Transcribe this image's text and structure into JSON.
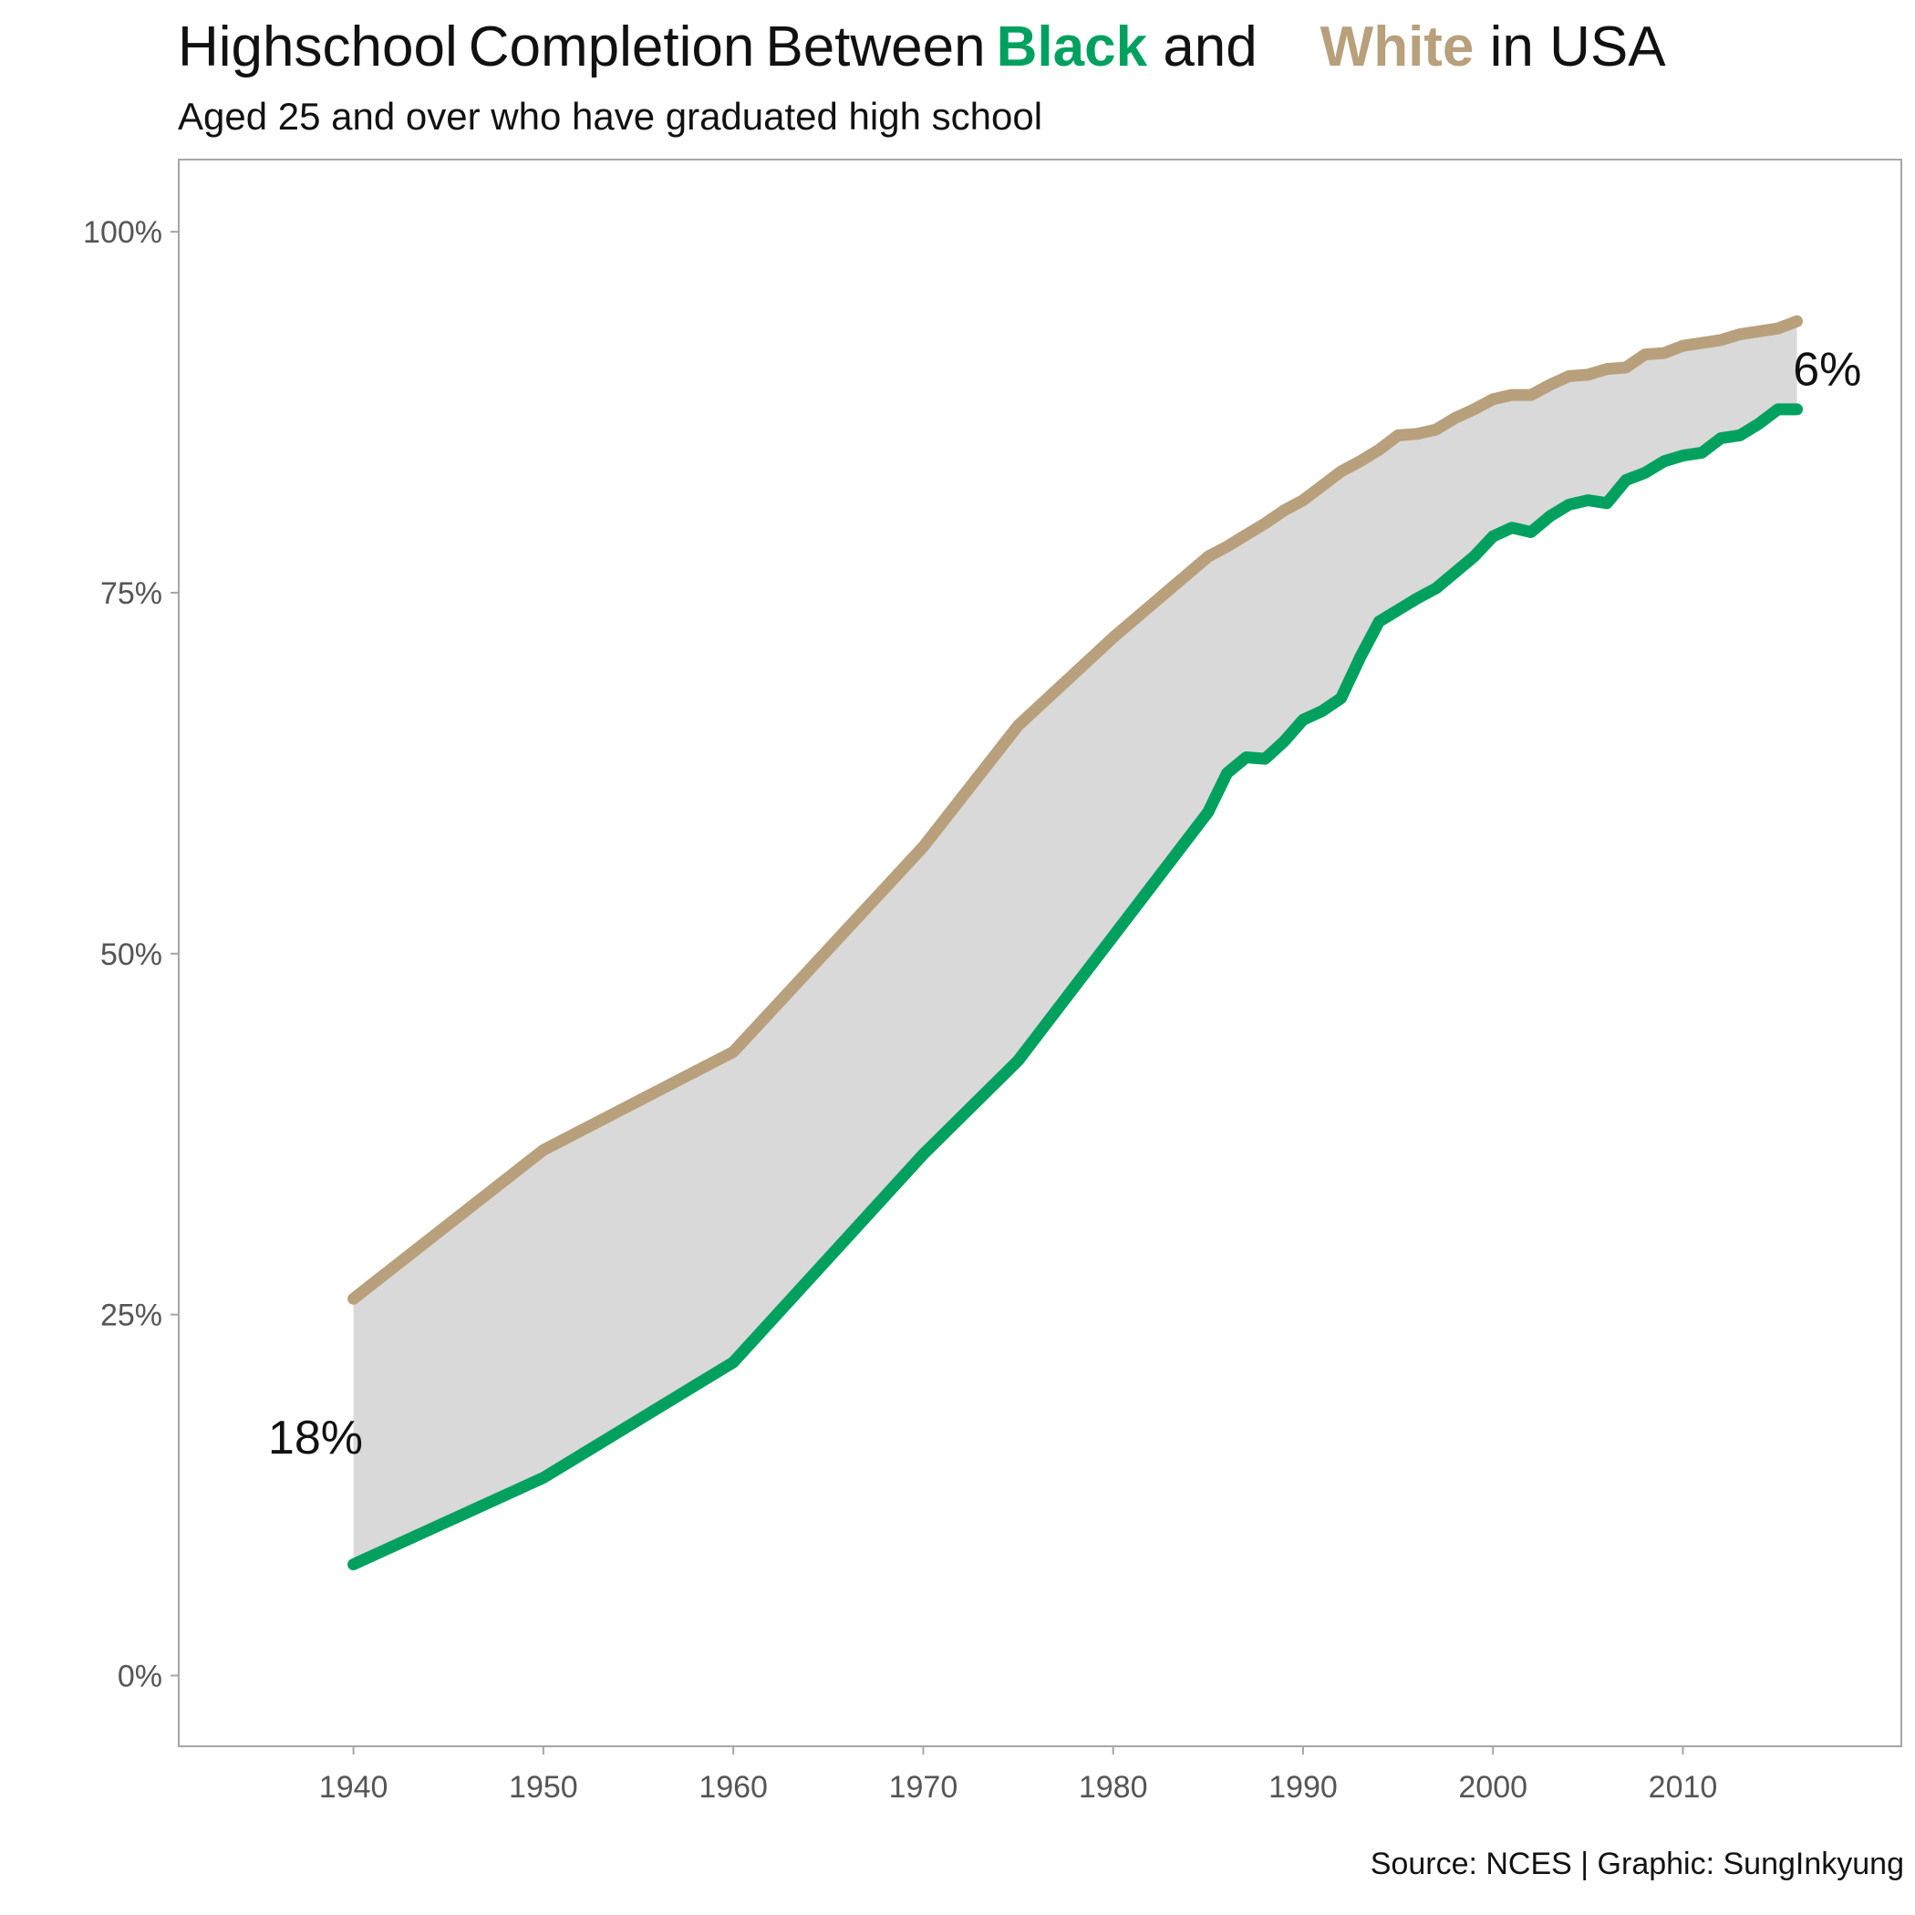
{
  "title": {
    "prefix_words": [
      "Highschool",
      "Completion",
      "Between"
    ],
    "black_word": "Black",
    "and_word": "and",
    "white_word": "White",
    "suffix": "in USA"
  },
  "subtitle": "Aged 25 and over who have graduated high school",
  "caption": "Source: NCES | Graphic: SungInkyung",
  "colors": {
    "black_series": "#00A15F",
    "white_series": "#B8A07C",
    "gap_fill": "#D9D9D9",
    "panel_border": "#A6A6A6"
  },
  "chart_data": {
    "type": "line",
    "title": "Highschool Completion Between Black and White in USA",
    "subtitle": "Aged 25 and over who have graduated high school",
    "xlabel": "",
    "ylabel": "",
    "xlim": [
      1930.8,
      2021.5
    ],
    "ylim": [
      -4.9,
      105
    ],
    "x_ticks": [
      1940,
      1950,
      1960,
      1970,
      1980,
      1990,
      2000,
      2010
    ],
    "x_tick_labels": [
      "1940",
      "1950",
      "1960",
      "1970",
      "1980",
      "1990",
      "2000",
      "2010"
    ],
    "y_ticks": [
      0,
      25,
      50,
      75,
      100
    ],
    "y_tick_labels": [
      "0%",
      "25%",
      "50%",
      "75%",
      "100%"
    ],
    "grid": false,
    "legend": "none (series named by colored words in the title)",
    "series": [
      {
        "name": "White",
        "color": "#B8A07C",
        "x": [
          1940,
          1950,
          1960,
          1970,
          1975,
          1980,
          1985,
          1986,
          1987,
          1988,
          1989,
          1990,
          1991,
          1992,
          1993,
          1994,
          1995,
          1996,
          1997,
          1998,
          1999,
          2000,
          2001,
          2002,
          2003,
          2004,
          2005,
          2006,
          2007,
          2008,
          2009,
          2010,
          2011,
          2012,
          2013,
          2014,
          2015,
          2016
        ],
        "values": [
          26.1,
          36.4,
          43.2,
          57.4,
          65.8,
          71.9,
          77.5,
          78.2,
          79.0,
          79.8,
          80.7,
          81.4,
          82.4,
          83.4,
          84.1,
          84.9,
          85.9,
          86.0,
          86.3,
          87.1,
          87.7,
          88.4,
          88.7,
          88.7,
          89.4,
          90.0,
          90.1,
          90.5,
          90.6,
          91.5,
          91.6,
          92.1,
          92.3,
          92.5,
          92.9,
          93.1,
          93.3,
          93.8
        ]
      },
      {
        "name": "Black",
        "color": "#00A15F",
        "x": [
          1940,
          1950,
          1960,
          1970,
          1975,
          1980,
          1985,
          1986,
          1987,
          1988,
          1989,
          1990,
          1991,
          1992,
          1993,
          1994,
          1995,
          1996,
          1997,
          1998,
          1999,
          2000,
          2001,
          2002,
          2003,
          2004,
          2005,
          2006,
          2007,
          2008,
          2009,
          2010,
          2011,
          2012,
          2013,
          2014,
          2015,
          2016
        ],
        "values": [
          7.7,
          13.7,
          21.7,
          36.1,
          42.6,
          51.2,
          59.8,
          62.5,
          63.6,
          63.5,
          64.7,
          66.2,
          66.8,
          67.7,
          70.5,
          73.0,
          73.8,
          74.6,
          75.3,
          76.4,
          77.5,
          78.9,
          79.5,
          79.2,
          80.3,
          81.1,
          81.4,
          81.2,
          82.8,
          83.3,
          84.1,
          84.5,
          84.7,
          85.7,
          85.9,
          86.7,
          87.7,
          87.7
        ]
      }
    ],
    "annotations": [
      {
        "text": "18%",
        "x": 1938.0,
        "y": 16.5
      },
      {
        "text": "6%",
        "x": 2017.6,
        "y": 90.5
      }
    ]
  }
}
